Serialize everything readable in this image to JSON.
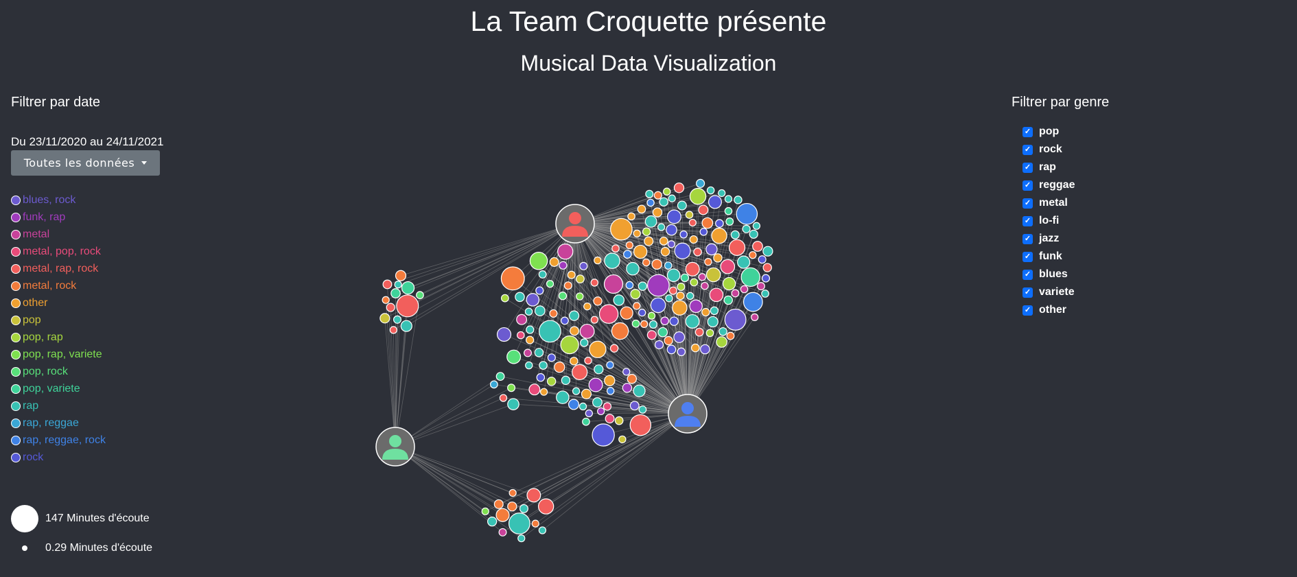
{
  "header": {
    "title": "La Team Croquette présente",
    "subtitle": "Musical Data Visualization"
  },
  "date_filter": {
    "title": "Filtrer par date",
    "range_text": "Du 23/11/2020 au 24/11/2021",
    "dropdown_label": "Toutes les données"
  },
  "legend": [
    {
      "label": "blues, rock",
      "color": "#6c5bd0"
    },
    {
      "label": "funk, rap",
      "color": "#a03bbd"
    },
    {
      "label": "metal",
      "color": "#c8429a"
    },
    {
      "label": "metal, pop, rock",
      "color": "#e84b7a"
    },
    {
      "label": "metal, rap, rock",
      "color": "#f25f5c"
    },
    {
      "label": "metal, rock",
      "color": "#f47c3c"
    },
    {
      "label": "other",
      "color": "#f0a030"
    },
    {
      "label": "pop",
      "color": "#c9c23a"
    },
    {
      "label": "pop, rap",
      "color": "#a6d63e"
    },
    {
      "label": "pop, rap, variete",
      "color": "#7fe050"
    },
    {
      "label": "pop, rock",
      "color": "#58e07a"
    },
    {
      "label": "pop, variete",
      "color": "#3fd39a"
    },
    {
      "label": "rap",
      "color": "#38c2b4"
    },
    {
      "label": "rap, reggae",
      "color": "#3aa7d6"
    },
    {
      "label": "rap, reggae, rock",
      "color": "#3f82e6"
    },
    {
      "label": "rock",
      "color": "#5559d8"
    }
  ],
  "size_legend": {
    "max_label": "147 Minutes d'écoute",
    "min_label": "0.29 Minutes d'écoute"
  },
  "genre_filter": {
    "title": "Filtrer par genre",
    "options": [
      {
        "label": "pop",
        "checked": true
      },
      {
        "label": "rock",
        "checked": true
      },
      {
        "label": "rap",
        "checked": true
      },
      {
        "label": "reggae",
        "checked": true
      },
      {
        "label": "metal",
        "checked": true
      },
      {
        "label": "lo-fi",
        "checked": true
      },
      {
        "label": "jazz",
        "checked": true
      },
      {
        "label": "funk",
        "checked": true
      },
      {
        "label": "blues",
        "checked": true
      },
      {
        "label": "variete",
        "checked": true
      },
      {
        "label": "other",
        "checked": true
      }
    ]
  },
  "graph": {
    "users": [
      {
        "name": "user-red",
        "color": "#f25f5c"
      },
      {
        "name": "user-blue",
        "color": "#4f7ff0"
      },
      {
        "name": "user-green",
        "color": "#6fe0a0"
      }
    ],
    "user_node_color": "#6b6b6b",
    "link_color": "#9a9a9a"
  }
}
